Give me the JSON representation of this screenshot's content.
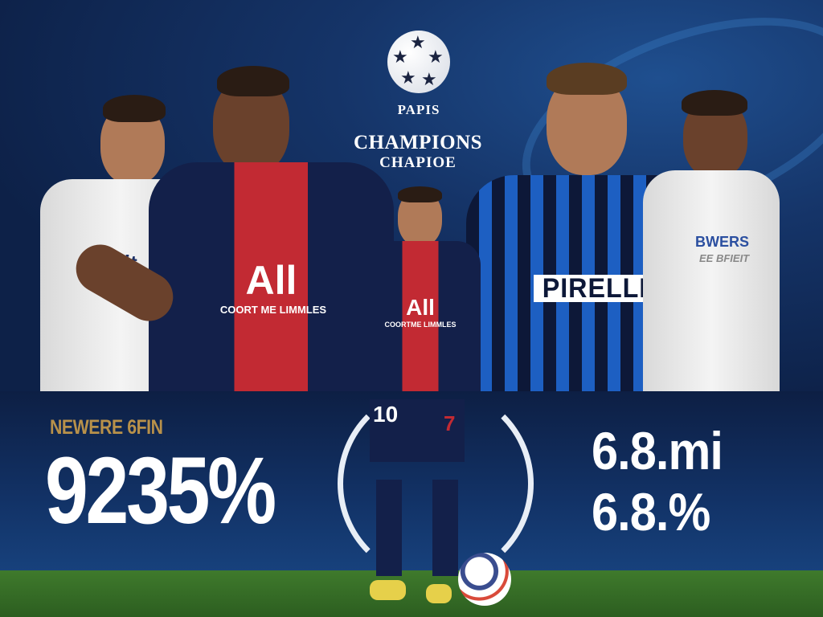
{
  "logo": {
    "icon": "starball-icon",
    "arc_text": "PAPIS",
    "title": "CHAMPIONS",
    "subtitle": "CHAPIOE"
  },
  "players": {
    "left_white": {
      "sponsor": "Emait"
    },
    "psg_main": {
      "sponsor": "All",
      "sponsor_sub": "COORT ME LIMMLES"
    },
    "psg_center": {
      "sponsor": "All",
      "sponsor_sub": "COORTME LIMMLES",
      "shorts_number_left": "10",
      "shorts_number_right": "7"
    },
    "inter": {
      "sponsor": "PIRELLI"
    },
    "right_white": {
      "sponsor": "BWERS",
      "sponsor_sub": "EE BFIEIT"
    }
  },
  "stats": {
    "left_label": "NEWERE 6FIN",
    "left_value": "9235%",
    "right_value_top": "6.8.mi",
    "right_value_bottom": "6.8.%"
  },
  "colors": {
    "navy": "#0e2350",
    "gold": "#b8914a",
    "psg_red": "#c22a33",
    "inter_blue": "#1d5fc2",
    "grass": "#3f7a2c"
  }
}
